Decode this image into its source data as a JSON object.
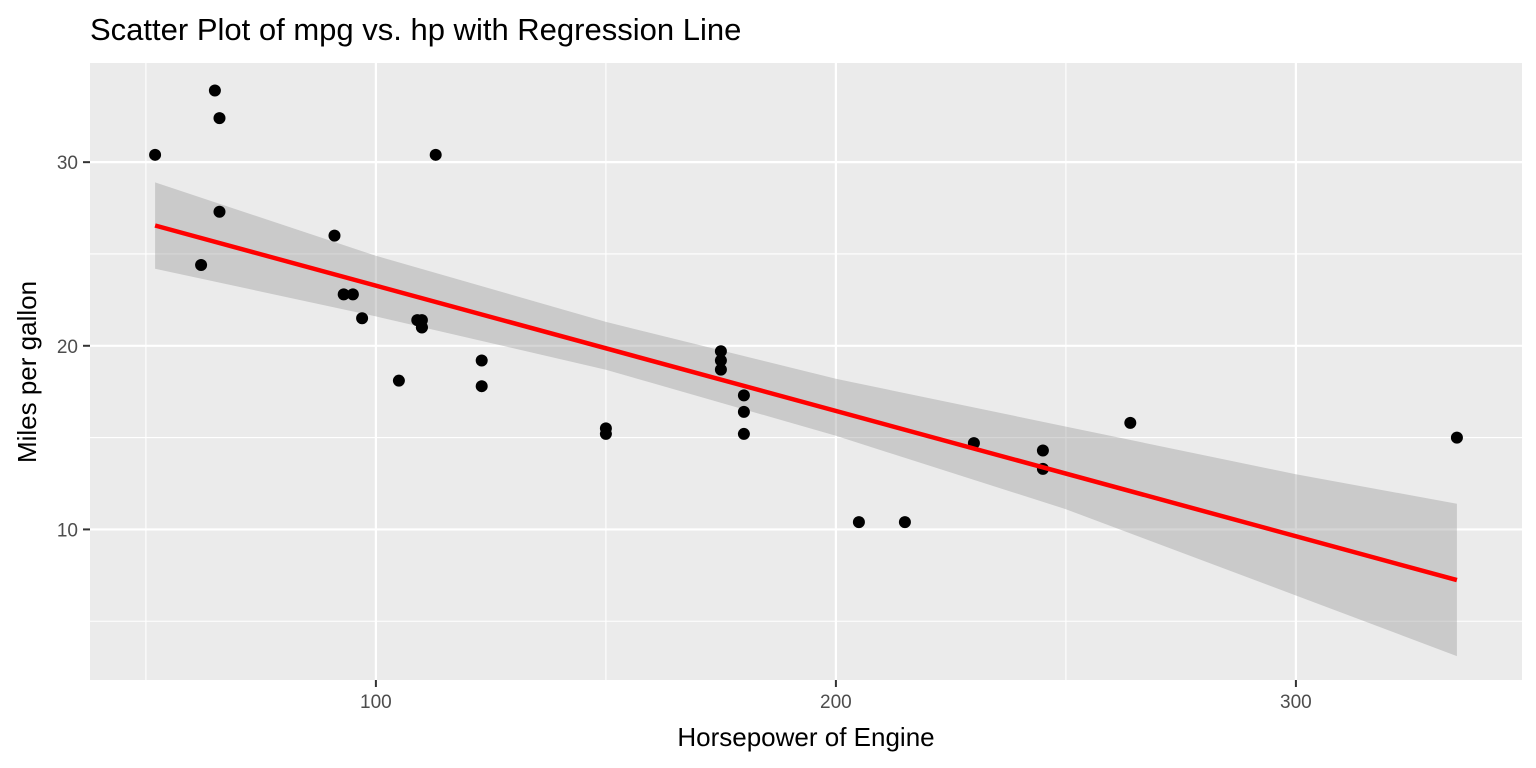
{
  "chart_data": {
    "type": "scatter",
    "title": "Scatter Plot of mpg vs. hp with Regression Line",
    "xlabel": "Horsepower of Engine",
    "ylabel": "Miles per gallon",
    "xlim": [
      37.85,
      349.15
    ],
    "ylim": [
      1.8,
      35.4
    ],
    "x_ticks": [
      100,
      200,
      300
    ],
    "y_ticks": [
      10,
      20,
      30
    ],
    "x_minor_ticks": [
      50,
      150,
      250
    ],
    "y_minor_ticks": [
      5,
      15,
      25
    ],
    "grid": true,
    "legend": "none",
    "colors": {
      "panel": "#ebebeb",
      "grid": "#ffffff",
      "points": "#000000",
      "regression_line": "#ff0000",
      "confidence_band": "#999999"
    },
    "series": [
      {
        "type": "points",
        "x": [
          110,
          110,
          93,
          110,
          175,
          105,
          245,
          62,
          95,
          123,
          123,
          180,
          180,
          180,
          205,
          215,
          230,
          66,
          52,
          65,
          97,
          150,
          150,
          245,
          175,
          66,
          91,
          113,
          264,
          175,
          335,
          109
        ],
        "y": [
          21.0,
          21.0,
          22.8,
          21.4,
          18.7,
          18.1,
          14.3,
          24.4,
          22.8,
          19.2,
          17.8,
          16.4,
          17.3,
          15.2,
          10.4,
          10.4,
          14.7,
          32.4,
          30.4,
          33.9,
          21.5,
          15.5,
          15.2,
          13.3,
          19.2,
          27.3,
          26.0,
          30.4,
          15.8,
          19.7,
          15.0,
          21.4
        ]
      },
      {
        "type": "regression_line",
        "x": [
          52,
          335
        ],
        "y": [
          26.55,
          7.24
        ]
      },
      {
        "type": "confidence_band",
        "x": [
          52,
          100,
          150,
          200,
          250,
          300,
          335
        ],
        "lower": [
          24.2,
          21.6,
          18.7,
          15.1,
          11.1,
          6.4,
          3.1
        ],
        "upper": [
          28.9,
          24.9,
          21.3,
          18.2,
          15.6,
          13.0,
          11.4
        ]
      }
    ]
  }
}
